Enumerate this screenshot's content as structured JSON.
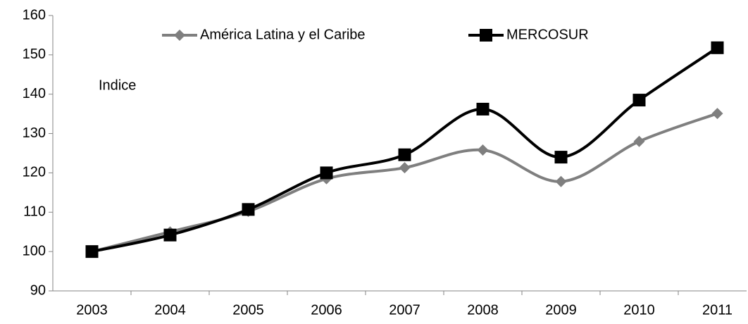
{
  "chart_data": {
    "type": "line",
    "categories": [
      "2003",
      "2004",
      "2005",
      "2006",
      "2007",
      "2008",
      "2009",
      "2010",
      "2011"
    ],
    "series": [
      {
        "name": "América Latina y el Caribe",
        "color": "#7f7f7f",
        "marker": "diamond",
        "values": [
          100,
          105,
          110.2,
          118.5,
          121.3,
          125.8,
          117.8,
          128,
          135.1
        ]
      },
      {
        "name": "MERCOSUR",
        "color": "#000000",
        "marker": "square",
        "values": [
          100,
          104.2,
          110.7,
          120,
          124.6,
          136.2,
          124,
          138.5,
          151.8
        ]
      }
    ],
    "annotation": "Indice",
    "ylim": [
      90,
      160
    ],
    "yticks": [
      90,
      100,
      110,
      120,
      130,
      140,
      150,
      160
    ],
    "grid": false,
    "smooth": true,
    "legend": "top"
  }
}
